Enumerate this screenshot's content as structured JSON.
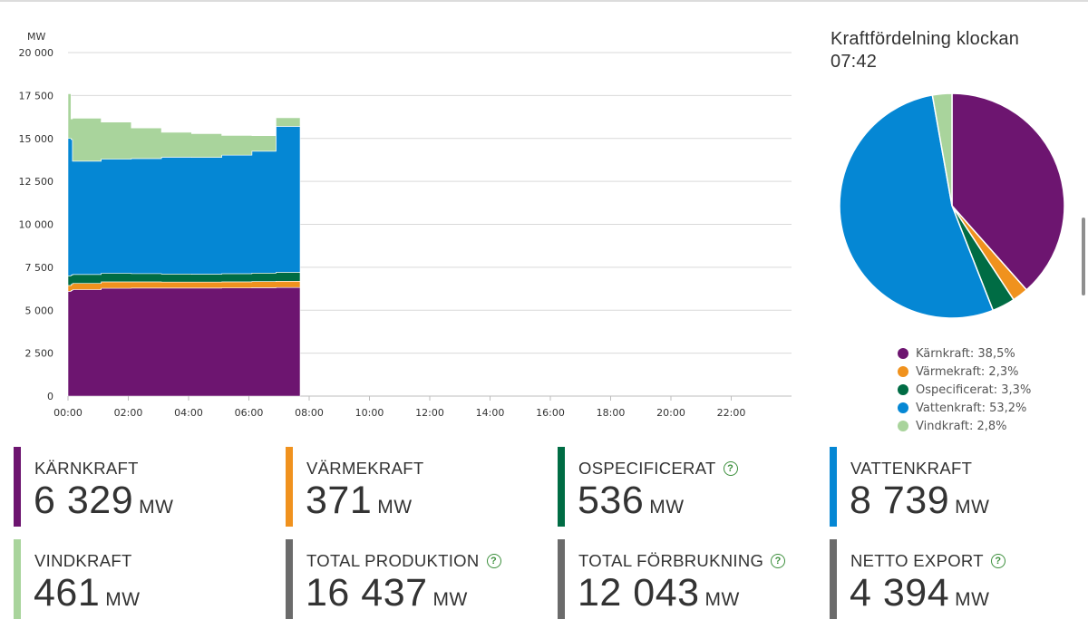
{
  "chart_data": [
    {
      "type": "area",
      "stacked": true,
      "ylabel": "MW",
      "ylim": [
        0,
        20000
      ],
      "yticks": [
        "0",
        "2 500",
        "5 000",
        "7 500",
        "10 000",
        "12 500",
        "15 000",
        "17 500",
        "20 000"
      ],
      "ytick_values": [
        0,
        2500,
        5000,
        7500,
        10000,
        12500,
        15000,
        17500,
        20000
      ],
      "xlim": [
        0,
        24
      ],
      "xticks": [
        "00:00",
        "02:00",
        "04:00",
        "06:00",
        "08:00",
        "10:00",
        "12:00",
        "14:00",
        "16:00",
        "18:00",
        "20:00",
        "22:00"
      ],
      "xtick_values": [
        0,
        2,
        4,
        6,
        8,
        10,
        12,
        14,
        16,
        18,
        20,
        22
      ],
      "x": [
        0,
        0.1,
        0.15,
        1.1,
        2.1,
        3.1,
        4.1,
        5.1,
        6.1,
        6.9,
        7.7
      ],
      "series": [
        {
          "name": "Kärnkraft",
          "color": "#6d1570",
          "values": [
            6100,
            6150,
            6200,
            6280,
            6290,
            6290,
            6290,
            6300,
            6310,
            6320,
            6329
          ]
        },
        {
          "name": "Värmekraft",
          "color": "#f0921e",
          "values": [
            340,
            350,
            360,
            370,
            360,
            350,
            350,
            355,
            360,
            365,
            371
          ]
        },
        {
          "name": "Ospecificerat",
          "color": "#006c44",
          "values": [
            560,
            540,
            520,
            500,
            480,
            470,
            460,
            470,
            490,
            520,
            536
          ]
        },
        {
          "name": "Vattenkraft",
          "color": "#0587d4",
          "values": [
            8000,
            7900,
            6600,
            6650,
            6700,
            6800,
            6800,
            6900,
            7100,
            8500,
            8739
          ]
        },
        {
          "name": "Vindkraft",
          "color": "#a9d49c",
          "values": [
            2600,
            1200,
            2500,
            2150,
            1780,
            1450,
            1380,
            1150,
            900,
            500,
            461
          ]
        }
      ]
    },
    {
      "type": "pie",
      "title_line1": "Kraftfördelning klockan",
      "title_line2": "07:42",
      "slices": [
        {
          "name": "Kärnkraft",
          "value": 38.5,
          "label": "Kärnkraft: 38,5%",
          "color": "#6d1570"
        },
        {
          "name": "Värmekraft",
          "value": 2.3,
          "label": "Värmekraft: 2,3%",
          "color": "#f0921e"
        },
        {
          "name": "Ospecificerat",
          "value": 3.3,
          "label": "Ospecificerat: 3,3%",
          "color": "#006c44"
        },
        {
          "name": "Vattenkraft",
          "value": 53.2,
          "label": "Vattenkraft: 53,2%",
          "color": "#0587d4"
        },
        {
          "name": "Vindkraft",
          "value": 2.8,
          "label": "Vindkraft: 2,8%",
          "color": "#a9d49c"
        }
      ]
    }
  ],
  "stats": [
    {
      "label": "KÄRNKRAFT",
      "value": "6 329",
      "unit": "MW",
      "color": "#6d1570",
      "help": false
    },
    {
      "label": "VÄRMEKRAFT",
      "value": "371",
      "unit": "MW",
      "color": "#f0921e",
      "help": false
    },
    {
      "label": "OSPECIFICERAT",
      "value": "536",
      "unit": "MW",
      "color": "#006c44",
      "help": true
    },
    {
      "label": "VATTENKRAFT",
      "value": "8 739",
      "unit": "MW",
      "color": "#0587d4",
      "help": false
    },
    {
      "label": "VINDKRAFT",
      "value": "461",
      "unit": "MW",
      "color": "#a9d49c",
      "help": false
    },
    {
      "label": "TOTAL PRODUKTION",
      "value": "16 437",
      "unit": "MW",
      "color": "#6b6b6b",
      "help": true
    },
    {
      "label": "TOTAL FÖRBRUKNING",
      "value": "12 043",
      "unit": "MW",
      "color": "#6b6b6b",
      "help": true
    },
    {
      "label": "NETTO EXPORT",
      "value": "4 394",
      "unit": "MW",
      "color": "#6b6b6b",
      "help": true
    }
  ],
  "help_icon": "question-mark-circle-icon",
  "help_glyph": "?"
}
